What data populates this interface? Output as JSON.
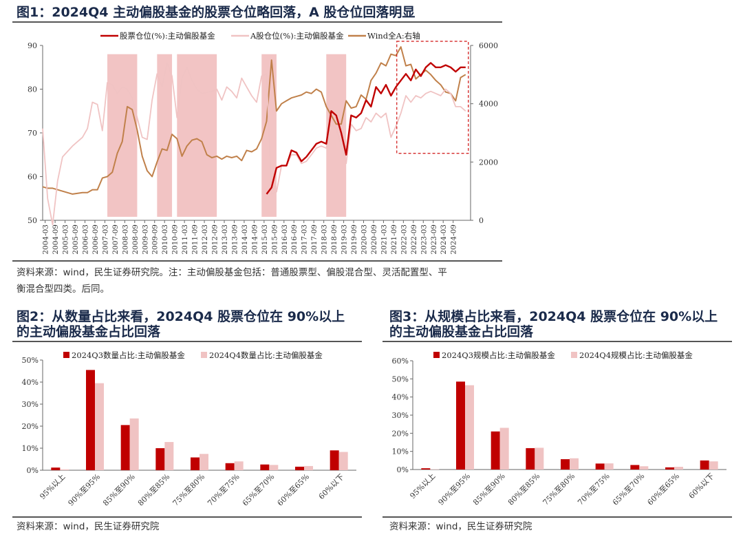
{
  "fig1": {
    "title": "图1：2024Q4 主动偏股基金的股票仓位略回落，A 股仓位回落明显",
    "source": "资料来源：wind，民生证券研究院。注：主动偏股基金包括：普通股票型、偏股混合型、灵活配置型、平",
    "source2": "衡混合型四类。后同。"
  },
  "fig2": {
    "title_line1": "图2：从数量占比来看，2024Q4 股票仓位在 90%以上",
    "title_line2": "的主动偏股基金占比回落",
    "source": "资料来源：wind，民生证券研究院"
  },
  "fig3": {
    "title_line1": "图3：从规模占比来看，2024Q4 股票仓位在 90%以上",
    "title_line2": "的主动偏股基金占比回落",
    "source": "资料来源：wind，民生证券研究院"
  },
  "colors": {
    "dark_red": "#c00000",
    "light_pink": "#f0c3c3",
    "brown": "#c0804a",
    "band": "#f2c4c4"
  },
  "chart_data": [
    {
      "type": "line",
      "x": [
        "2004-03",
        "2004-09",
        "2005-03",
        "2005-09",
        "2006-03",
        "2006-09",
        "2007-03",
        "2007-09",
        "2008-03",
        "2008-09",
        "2009-03",
        "2009-09",
        "2010-03",
        "2010-09",
        "2011-03",
        "2011-09",
        "2012-03",
        "2012-09",
        "2013-03",
        "2013-09",
        "2014-03",
        "2014-09",
        "2015-03",
        "2015-09",
        "2016-03",
        "2016-09",
        "2017-03",
        "2017-09",
        "2018-03",
        "2018-09",
        "2019-03",
        "2019-09",
        "2020-03",
        "2020-09",
        "2021-03",
        "2021-09",
        "2022-03",
        "2022-09",
        "2023-03",
        "2023-09",
        "2024-03",
        "2024-09"
      ],
      "ylim": [
        50,
        90
      ],
      "y2lim": [
        0,
        6000
      ],
      "yticks": [
        50,
        60,
        70,
        80,
        90
      ],
      "y2ticks": [
        0,
        2000,
        4000,
        6000
      ],
      "series": [
        {
          "name": "股票仓位(%):主动偏股基金",
          "axis": "left",
          "color": "#c00000",
          "points": [
            [
              2015.25,
              56
            ],
            [
              2015.5,
              57.5
            ],
            [
              2015.75,
              62
            ],
            [
              2016.0,
              62.5
            ],
            [
              2016.25,
              62.5
            ],
            [
              2016.5,
              66
            ],
            [
              2016.75,
              65.5
            ],
            [
              2017.0,
              63.5
            ],
            [
              2017.25,
              64.5
            ],
            [
              2017.5,
              66
            ],
            [
              2017.75,
              67.5
            ],
            [
              2018.0,
              68
            ],
            [
              2018.25,
              67.5
            ],
            [
              2018.5,
              75
            ],
            [
              2018.75,
              74
            ],
            [
              2019.0,
              70
            ],
            [
              2019.25,
              65
            ],
            [
              2019.5,
              74
            ],
            [
              2019.75,
              73.5
            ],
            [
              2020.0,
              74.5
            ],
            [
              2020.25,
              77.5
            ],
            [
              2020.5,
              76
            ],
            [
              2020.75,
              80.5
            ],
            [
              2021.0,
              79
            ],
            [
              2021.25,
              81
            ],
            [
              2021.5,
              78.5
            ],
            [
              2021.75,
              80.5
            ],
            [
              2022.0,
              82
            ],
            [
              2022.25,
              83.5
            ],
            [
              2022.5,
              82
            ],
            [
              2022.75,
              84.5
            ],
            [
              2023.0,
              83
            ],
            [
              2023.25,
              85
            ],
            [
              2023.5,
              86
            ],
            [
              2023.75,
              85
            ],
            [
              2024.0,
              85
            ],
            [
              2024.25,
              85.5
            ],
            [
              2024.5,
              85
            ],
            [
              2024.75,
              84
            ],
            [
              2025.0,
              85
            ],
            [
              2025.25,
              85
            ]
          ]
        },
        {
          "name": "A股仓位(%):主动偏股基金",
          "axis": "left",
          "color": "#f0c3c3",
          "points": [
            [
              2004.0,
              71
            ],
            [
              2004.25,
              55
            ],
            [
              2004.5,
              49
            ],
            [
              2004.75,
              59
            ],
            [
              2005.0,
              64.5
            ],
            [
              2005.5,
              67
            ],
            [
              2006.0,
              69
            ],
            [
              2006.25,
              71
            ],
            [
              2006.5,
              77
            ],
            [
              2006.75,
              76.5
            ],
            [
              2007.0,
              70.5
            ],
            [
              2007.25,
              81.5
            ],
            [
              2007.5,
              81
            ],
            [
              2007.75,
              79
            ],
            [
              2008.0,
              80.5
            ],
            [
              2008.25,
              80
            ],
            [
              2008.5,
              78
            ],
            [
              2008.75,
              73.5
            ],
            [
              2009.0,
              69
            ],
            [
              2009.25,
              68.5
            ],
            [
              2009.5,
              77.5
            ],
            [
              2009.75,
              83.5
            ],
            [
              2010.0,
              80.5
            ],
            [
              2010.25,
              86
            ],
            [
              2010.5,
              83
            ],
            [
              2010.75,
              73.5
            ],
            [
              2011.0,
              82.5
            ],
            [
              2011.25,
              85
            ],
            [
              2011.5,
              82
            ],
            [
              2011.75,
              80
            ],
            [
              2012.0,
              79
            ],
            [
              2012.5,
              79.5
            ],
            [
              2012.75,
              80
            ],
            [
              2013.0,
              77.5
            ],
            [
              2013.25,
              80.5
            ],
            [
              2013.5,
              79.5
            ],
            [
              2013.75,
              78
            ],
            [
              2014.0,
              82.5
            ],
            [
              2014.25,
              80.5
            ],
            [
              2014.5,
              78.5
            ],
            [
              2014.75,
              77
            ],
            [
              2015.0,
              83
            ],
            [
              2015.25,
              83.5
            ],
            [
              2015.5,
              56
            ],
            [
              2015.75,
              56.5
            ],
            [
              2016.0,
              62.5
            ],
            [
              2016.25,
              62.5
            ],
            [
              2016.5,
              65
            ],
            [
              2016.75,
              65
            ],
            [
              2017.0,
              63
            ],
            [
              2017.25,
              63.5
            ],
            [
              2017.5,
              65
            ],
            [
              2017.75,
              66.5
            ],
            [
              2018.0,
              67
            ],
            [
              2018.25,
              66.5
            ],
            [
              2018.5,
              72
            ],
            [
              2018.75,
              71
            ],
            [
              2019.0,
              67
            ],
            [
              2019.25,
              63
            ],
            [
              2019.5,
              72
            ],
            [
              2019.75,
              70.5
            ],
            [
              2020.0,
              71
            ],
            [
              2020.25,
              73.5
            ],
            [
              2020.5,
              72.5
            ],
            [
              2020.75,
              74.5
            ],
            [
              2021.0,
              73.5
            ],
            [
              2021.25,
              74.5
            ],
            [
              2021.5,
              69
            ],
            [
              2021.75,
              71.5
            ],
            [
              2022.0,
              74.5
            ],
            [
              2022.25,
              78.5
            ],
            [
              2022.5,
              77
            ],
            [
              2022.75,
              78.5
            ],
            [
              2023.0,
              78
            ],
            [
              2023.25,
              79
            ],
            [
              2023.5,
              79.5
            ],
            [
              2023.75,
              79
            ],
            [
              2024.0,
              78.5
            ],
            [
              2024.25,
              80
            ],
            [
              2024.5,
              79
            ],
            [
              2024.75,
              76
            ],
            [
              2025.0,
              76
            ],
            [
              2025.25,
              75
            ]
          ]
        },
        {
          "name": "Wind全A:右轴",
          "axis": "right",
          "color": "#c0804a",
          "points": [
            [
              2004.0,
              1150
            ],
            [
              2004.25,
              1100
            ],
            [
              2004.5,
              1100
            ],
            [
              2005.0,
              1000
            ],
            [
              2005.5,
              900
            ],
            [
              2006.0,
              950
            ],
            [
              2006.25,
              950
            ],
            [
              2006.5,
              1050
            ],
            [
              2006.75,
              1050
            ],
            [
              2007.0,
              1450
            ],
            [
              2007.25,
              1500
            ],
            [
              2007.5,
              1650
            ],
            [
              2007.75,
              2300
            ],
            [
              2008.0,
              2700
            ],
            [
              2008.25,
              3900
            ],
            [
              2008.5,
              3800
            ],
            [
              2008.75,
              3100
            ],
            [
              2009.0,
              2200
            ],
            [
              2009.25,
              1700
            ],
            [
              2009.5,
              1500
            ],
            [
              2009.75,
              2000
            ],
            [
              2010.0,
              2450
            ],
            [
              2010.25,
              2400
            ],
            [
              2010.5,
              2950
            ],
            [
              2010.75,
              2800
            ],
            [
              2011.0,
              2200
            ],
            [
              2011.25,
              2550
            ],
            [
              2011.5,
              2750
            ],
            [
              2011.75,
              2800
            ],
            [
              2012.0,
              2700
            ],
            [
              2012.25,
              2250
            ],
            [
              2012.5,
              2150
            ],
            [
              2012.75,
              2200
            ],
            [
              2013.0,
              2100
            ],
            [
              2013.25,
              2200
            ],
            [
              2013.5,
              2150
            ],
            [
              2013.75,
              2200
            ],
            [
              2014.0,
              2050
            ],
            [
              2014.25,
              2400
            ],
            [
              2014.5,
              2350
            ],
            [
              2014.75,
              2450
            ],
            [
              2015.0,
              2800
            ],
            [
              2015.25,
              3400
            ],
            [
              2015.5,
              5500
            ],
            [
              2015.75,
              3750
            ],
            [
              2016.0,
              4000
            ],
            [
              2016.25,
              4100
            ],
            [
              2016.5,
              4200
            ],
            [
              2016.75,
              4250
            ],
            [
              2017.0,
              4300
            ],
            [
              2017.25,
              4400
            ],
            [
              2017.5,
              4350
            ],
            [
              2017.75,
              4500
            ],
            [
              2018.0,
              4400
            ],
            [
              2018.25,
              3900
            ],
            [
              2018.5,
              3600
            ],
            [
              2018.75,
              3300
            ],
            [
              2019.0,
              3300
            ],
            [
              2019.25,
              4100
            ],
            [
              2019.5,
              3850
            ],
            [
              2019.75,
              3900
            ],
            [
              2020.0,
              4300
            ],
            [
              2020.25,
              4150
            ],
            [
              2020.5,
              4800
            ],
            [
              2020.75,
              5050
            ],
            [
              2021.0,
              5400
            ],
            [
              2021.25,
              5300
            ],
            [
              2021.5,
              5700
            ],
            [
              2021.75,
              5650
            ],
            [
              2022.0,
              5950
            ],
            [
              2022.25,
              5300
            ],
            [
              2022.5,
              5350
            ],
            [
              2022.75,
              4850
            ],
            [
              2023.0,
              5000
            ],
            [
              2023.25,
              5150
            ],
            [
              2023.5,
              5000
            ],
            [
              2023.75,
              4800
            ],
            [
              2024.0,
              4650
            ],
            [
              2024.25,
              4400
            ],
            [
              2024.5,
              4350
            ],
            [
              2024.75,
              4100
            ],
            [
              2025.0,
              4900
            ],
            [
              2025.25,
              5000
            ]
          ]
        }
      ],
      "bands": [
        [
          2007.25,
          2008.75
        ],
        [
          2009.75,
          2010.5
        ],
        [
          2010.75,
          2012.75
        ],
        [
          2015.0,
          2015.75
        ],
        [
          2018.25,
          2019.25
        ]
      ],
      "highlight_box": [
        2022.0,
        2025.25
      ]
    },
    {
      "type": "bar",
      "categories": [
        "95%以上",
        "90%至95%",
        "85%至90%",
        "80%至85%",
        "75%至80%",
        "70%至75%",
        "65%至70%",
        "60%至65%",
        "60%以下"
      ],
      "ylim": [
        0,
        50
      ],
      "yticks": [
        "0%",
        "10%",
        "20%",
        "30%",
        "40%",
        "50%"
      ],
      "series": [
        {
          "name": "2024Q3数量占比:主动偏股基金",
          "color": "#c00000",
          "values": [
            1.2,
            45.5,
            20.5,
            10,
            5.8,
            3.2,
            2.6,
            1.6,
            9
          ]
        },
        {
          "name": "2024Q4数量占比:主动偏股基金",
          "color": "#f0c3c3",
          "values": [
            0.4,
            39.5,
            23.5,
            12.8,
            7.4,
            4,
            2.4,
            1.9,
            8.3
          ]
        }
      ]
    },
    {
      "type": "bar",
      "categories": [
        "95%以上",
        "90%至95%",
        "85%至90%",
        "80%至85%",
        "75%至80%",
        "70%至75%",
        "65%至70%",
        "60%至65%",
        "60%以下"
      ],
      "ylim": [
        0,
        60
      ],
      "yticks": [
        "0%",
        "10%",
        "20%",
        "30%",
        "40%",
        "50%",
        "60%"
      ],
      "series": [
        {
          "name": "2024Q3规模占比:主动偏股基金",
          "color": "#c00000",
          "values": [
            0.7,
            48.5,
            21,
            11.8,
            5.7,
            3.3,
            2.5,
            1.2,
            5
          ]
        },
        {
          "name": "2024Q4规模占比:主动偏股基金",
          "color": "#f0c3c3",
          "values": [
            0.2,
            46.5,
            23,
            12,
            6.2,
            3.4,
            1.8,
            1.5,
            4.5
          ]
        }
      ]
    }
  ]
}
